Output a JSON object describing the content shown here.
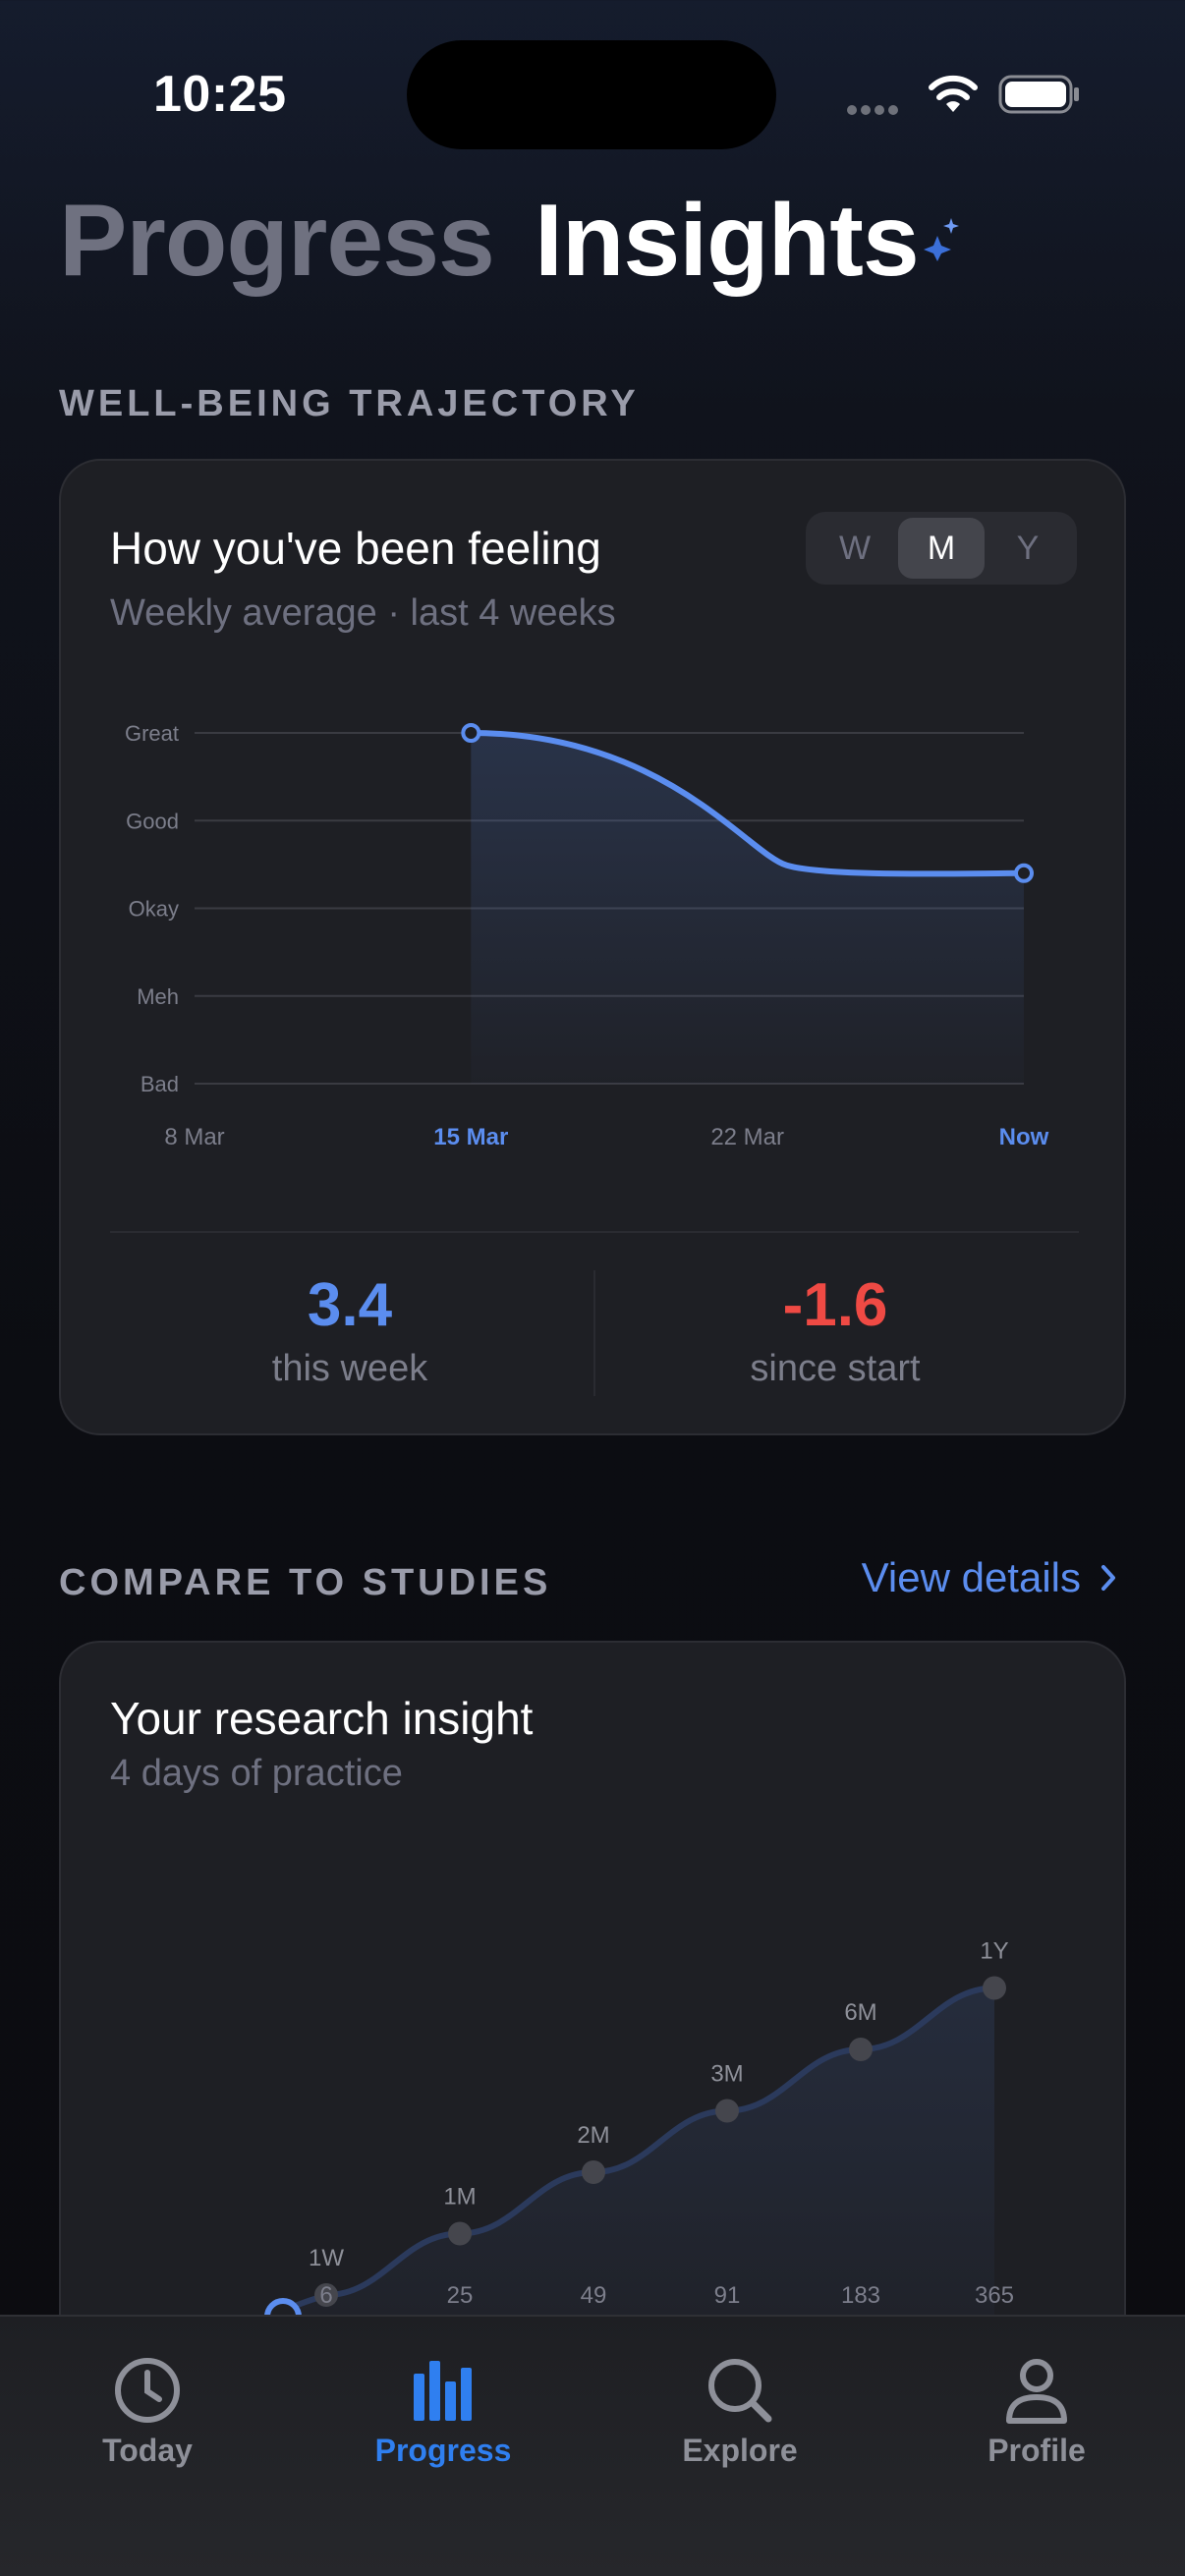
{
  "status_bar": {
    "time": "10:25"
  },
  "header": {
    "tab_progress": "Progress",
    "tab_insights": "Insights"
  },
  "trajectory": {
    "section_title": "WELL-BEING TRAJECTORY",
    "card_title": "How you've been feeling",
    "card_subtitle": "Weekly average · last 4 weeks",
    "segments": [
      "W",
      "M",
      "Y"
    ],
    "selected_segment": "M",
    "stat_this_week": {
      "value": "3.4",
      "label": "this week"
    },
    "stat_since_start": {
      "value": "-1.6",
      "label": "since start"
    }
  },
  "compare": {
    "section_title": "COMPARE TO STUDIES",
    "view_details": "View details",
    "card_title": "Your research insight",
    "card_subtitle": "4 days of practice"
  },
  "colors": {
    "accent": "#5b8def",
    "negative": "#ef4a44",
    "tab_active": "#2f7ff0"
  },
  "chart_data": [
    {
      "type": "line",
      "title": "How you've been feeling",
      "subtitle": "Weekly average · last 4 weeks",
      "y_categories": [
        "Bad",
        "Meh",
        "Okay",
        "Good",
        "Great"
      ],
      "ylim": [
        1,
        5
      ],
      "categories": [
        "8 Mar",
        "15 Mar",
        "22 Mar",
        "Now"
      ],
      "highlighted_categories": [
        "15 Mar",
        "Now"
      ],
      "points": [
        {
          "x": "15 Mar",
          "y": 5.0
        },
        {
          "x": "Now",
          "y": 3.4
        }
      ],
      "grid": true
    },
    {
      "type": "line",
      "title": "Your research insight",
      "subtitle": "4 days of practice",
      "x_ticks": [
        6,
        25,
        49,
        91,
        183,
        365
      ],
      "milestones": [
        "1W",
        "1M",
        "2M",
        "3M",
        "6M",
        "1Y"
      ],
      "milestone_values": [
        1,
        2,
        3,
        4,
        5,
        6
      ],
      "current_value": 0.7,
      "current_days": 4
    }
  ]
}
